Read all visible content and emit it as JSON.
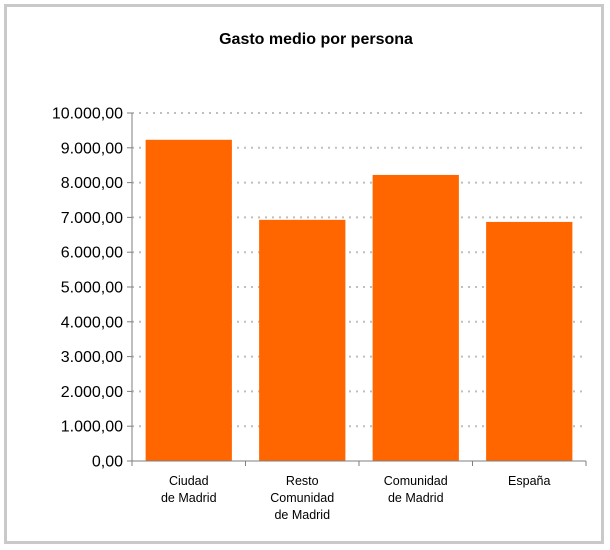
{
  "chart_data": {
    "type": "bar",
    "title": "Gasto medio por persona",
    "xlabel": "",
    "ylabel": "",
    "categories": [
      [
        "Ciudad",
        "de Madrid"
      ],
      [
        "Resto",
        "Comunidad",
        "de Madrid"
      ],
      [
        "Comunidad",
        "de Madrid"
      ],
      [
        "España"
      ]
    ],
    "values": [
      9230,
      6930,
      8220,
      6870
    ],
    "ylim": [
      0,
      10000
    ],
    "yticks": [
      0,
      1000,
      2000,
      3000,
      4000,
      5000,
      6000,
      7000,
      8000,
      9000,
      10000
    ],
    "ytick_labels": [
      "0,00",
      "1.000,00",
      "2.000,00",
      "3.000,00",
      "4.000,00",
      "5.000,00",
      "6.000,00",
      "7.000,00",
      "8.000,00",
      "9.000,00",
      "10.000,00"
    ],
    "grid": true,
    "legend": "none",
    "colors": {
      "bar": "#ff6600",
      "grid": "#bfbfbf",
      "axis": "#7f7f7f",
      "frame": "#c9c9c9"
    }
  }
}
